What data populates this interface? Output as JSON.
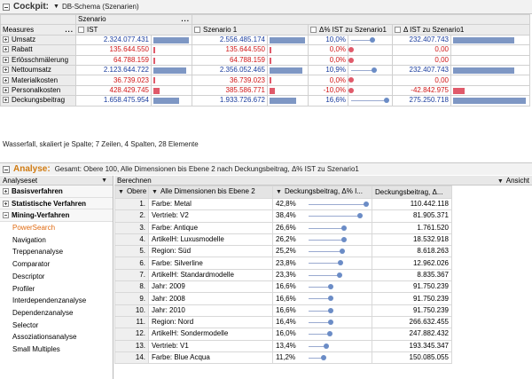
{
  "cockpit": {
    "title": "Cockpit:",
    "schema": "DB-Schema (Szenarien)",
    "dimension_label": "Szenario",
    "measures_label": "Measures",
    "col_ist": "IST",
    "col_sz1": "Szenario 1",
    "col_pct": "Δ% IST zu Szenario1",
    "col_delta": "Δ IST zu Szenario1",
    "colors": {
      "positive": "#1a3d9e",
      "negative": "#d01818",
      "bar": "#7e97c4",
      "bar_negative": "#e05a6a"
    },
    "rows": [
      {
        "label": "Umsatz",
        "ist": "2.324.077.431",
        "ist_v": 2324077431,
        "sz1": "2.556.485.174",
        "sz1_v": 2556485174,
        "pct": "10,0%",
        "pct_v": 10.0,
        "delta": "232.407.743",
        "delta_v": 232407743,
        "neg": false
      },
      {
        "label": "Rabatt",
        "ist": "135.644.550",
        "ist_v": 135644550,
        "sz1": "135.644.550",
        "sz1_v": 135644550,
        "pct": "0,0%",
        "pct_v": 0,
        "delta": "0,00",
        "delta_v": 0,
        "neg": true
      },
      {
        "label": "Erlösschmälerung",
        "ist": "64.788.159",
        "ist_v": 64788159,
        "sz1": "64.788.159",
        "sz1_v": 64788159,
        "pct": "0,0%",
        "pct_v": 0,
        "delta": "0,00",
        "delta_v": 0,
        "neg": true
      },
      {
        "label": "Nettoumsatz",
        "ist": "2.123.644.722",
        "ist_v": 2123644722,
        "sz1": "2.356.052.465",
        "sz1_v": 2356052465,
        "pct": "10,9%",
        "pct_v": 10.9,
        "delta": "232.407.743",
        "delta_v": 232407743,
        "neg": false
      },
      {
        "label": "Materialkosten",
        "ist": "36.739.023",
        "ist_v": 36739023,
        "sz1": "36.739.023",
        "sz1_v": 36739023,
        "pct": "0,0%",
        "pct_v": 0,
        "delta": "0,00",
        "delta_v": 0,
        "neg": true
      },
      {
        "label": "Personalkosten",
        "ist": "428.429.745",
        "ist_v": 428429745,
        "sz1": "385.586.771",
        "sz1_v": 385586771,
        "pct": "-10,0%",
        "pct_v": -10.0,
        "delta": "-42.842.975",
        "delta_v": -42842975,
        "neg": true
      },
      {
        "label": "Deckungsbeitrag",
        "ist": "1.658.475.954",
        "ist_v": 1658475954,
        "sz1": "1.933.726.672",
        "sz1_v": 1933726672,
        "pct": "16,6%",
        "pct_v": 16.6,
        "delta": "275.250.718",
        "delta_v": 275250718,
        "neg": false
      }
    ],
    "status": "Wasserfall, skaliert je Spalte; 7 Zeilen, 4 Spalten, 28 Elemente"
  },
  "analyse": {
    "title": "Analyse:",
    "description": "Gesamt: Obere 100, Alle Dimensionen bis Ebene 2 nach Deckungsbeitrag, Δ% IST zu Szenario1",
    "sidebar_title": "Analyseset",
    "main_title": "Berechnen",
    "view_label": "Ansicht",
    "groups": [
      {
        "label": "Basisverfahren",
        "open": false
      },
      {
        "label": "Statistische Verfahren",
        "open": false
      },
      {
        "label": "Mining-Verfahren",
        "open": true
      }
    ],
    "items": [
      "PowerSearch",
      "Navigation",
      "Treppenanalyse",
      "Comparator",
      "Descriptor",
      "Profiler",
      "Interdependenzanalyse",
      "Dependenzanalyse",
      "Selector",
      "Assoziationsanalyse",
      "Small Multiples"
    ],
    "active_item": "PowerSearch",
    "col_rank": "Obere",
    "col_dim": "Alle Dimensionen bis Ebene 2",
    "col_pct": "Deckungsbeitrag, Δ% I...",
    "col_val": "Deckungsbeitrag, Δ...",
    "rows": [
      {
        "rank": "1.",
        "dim": "Farbe: Metal",
        "pct": "42,8%",
        "pct_v": 42.8,
        "val": "110.442.118"
      },
      {
        "rank": "2.",
        "dim": "Vertrieb: V2",
        "pct": "38,4%",
        "pct_v": 38.4,
        "val": "81.905.371"
      },
      {
        "rank": "3.",
        "dim": "Farbe: Antique",
        "pct": "26,6%",
        "pct_v": 26.6,
        "val": "1.761.520"
      },
      {
        "rank": "4.",
        "dim": "ArtikelH: Luxusmodelle",
        "pct": "26,2%",
        "pct_v": 26.2,
        "val": "18.532.918"
      },
      {
        "rank": "5.",
        "dim": "Region: Süd",
        "pct": "25,2%",
        "pct_v": 25.2,
        "val": "8.618.263"
      },
      {
        "rank": "6.",
        "dim": "Farbe: Silverline",
        "pct": "23,8%",
        "pct_v": 23.8,
        "val": "12.962.026"
      },
      {
        "rank": "7.",
        "dim": "ArtikelH: Standardmodelle",
        "pct": "23,3%",
        "pct_v": 23.3,
        "val": "8.835.367"
      },
      {
        "rank": "8.",
        "dim": "Jahr: 2009",
        "pct": "16,6%",
        "pct_v": 16.6,
        "val": "91.750.239"
      },
      {
        "rank": "9.",
        "dim": "Jahr: 2008",
        "pct": "16,6%",
        "pct_v": 16.6,
        "val": "91.750.239"
      },
      {
        "rank": "10.",
        "dim": "Jahr: 2010",
        "pct": "16,6%",
        "pct_v": 16.6,
        "val": "91.750.239"
      },
      {
        "rank": "11.",
        "dim": "Region: Nord",
        "pct": "16,4%",
        "pct_v": 16.4,
        "val": "266.632.455"
      },
      {
        "rank": "12.",
        "dim": "ArtikelH: Sondermodelle",
        "pct": "16,0%",
        "pct_v": 16.0,
        "val": "247.882.432"
      },
      {
        "rank": "13.",
        "dim": "Vertrieb: V1",
        "pct": "13,4%",
        "pct_v": 13.4,
        "val": "193.345.347"
      },
      {
        "rank": "14.",
        "dim": "Farbe: Blue Acqua",
        "pct": "11,2%",
        "pct_v": 11.2,
        "val": "150.085.055"
      }
    ]
  }
}
